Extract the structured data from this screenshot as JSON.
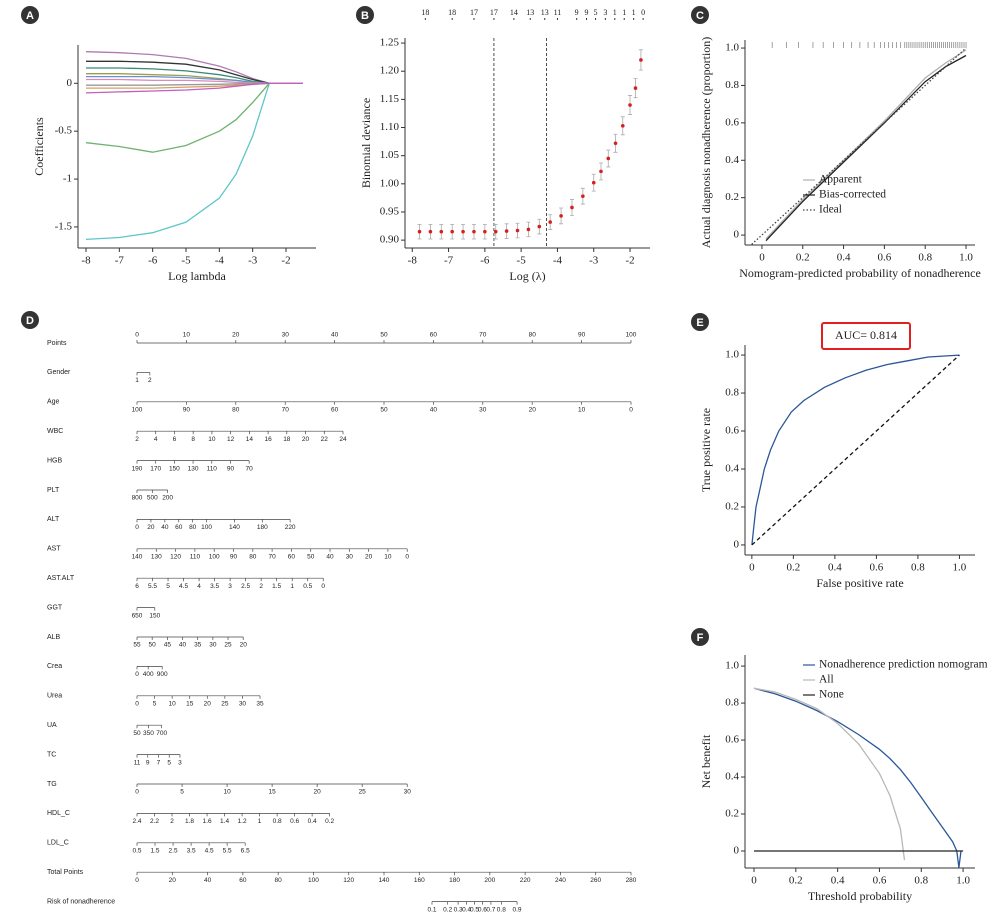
{
  "chart_data": [
    {
      "label": "A",
      "type": "line",
      "xlabel": "Log lambda",
      "ylabel": "Coefficients",
      "x": [
        -8,
        -7,
        -6,
        -5,
        -4,
        -3.5,
        -3,
        -2.5,
        -2,
        -1.5
      ],
      "xlim": [
        -8.24,
        -1.1
      ],
      "ylim": [
        -1.72,
        0.4
      ],
      "xticks": [
        -8,
        -7,
        -6,
        -5,
        -4,
        -3,
        -2
      ],
      "yticks": [
        0,
        -0.5,
        -1,
        -1.5
      ],
      "series": [
        {
          "color": "#5fc6c8",
          "values": [
            -1.63,
            -1.61,
            -1.56,
            -1.45,
            -1.2,
            -0.95,
            -0.55,
            0,
            0,
            0
          ]
        },
        {
          "color": "#6fb36f",
          "values": [
            -0.62,
            -0.66,
            -0.72,
            -0.65,
            -0.5,
            -0.38,
            -0.2,
            0,
            0,
            0
          ]
        },
        {
          "color": "#b07ab0",
          "values": [
            0.33,
            0.32,
            0.3,
            0.26,
            0.18,
            0.12,
            0.05,
            0,
            0,
            0
          ]
        },
        {
          "color": "#333333",
          "values": [
            0.23,
            0.23,
            0.22,
            0.2,
            0.14,
            0.09,
            0.04,
            0,
            0,
            0
          ]
        },
        {
          "color": "#3a8a7a",
          "values": [
            0.16,
            0.16,
            0.15,
            0.13,
            0.09,
            0.06,
            0.02,
            0,
            0,
            0
          ]
        },
        {
          "color": "#9aa050",
          "values": [
            0.1,
            0.1,
            0.09,
            0.08,
            0.05,
            0.03,
            0.01,
            0,
            0,
            0
          ]
        },
        {
          "color": "#6a8fd0",
          "values": [
            0.07,
            0.07,
            0.07,
            0.06,
            0.04,
            0.03,
            0.01,
            0,
            0,
            0
          ]
        },
        {
          "color": "#d88cb8",
          "values": [
            0.04,
            0.04,
            0.03,
            0.03,
            0.02,
            0.01,
            0.005,
            0,
            0,
            0
          ]
        },
        {
          "color": "#999999",
          "values": [
            -0.02,
            -0.02,
            -0.02,
            -0.015,
            -0.01,
            -0.005,
            0,
            0,
            0,
            0
          ]
        },
        {
          "color": "#d8a060",
          "values": [
            -0.05,
            -0.05,
            -0.05,
            -0.04,
            -0.03,
            -0.02,
            -0.01,
            0,
            0,
            0
          ]
        },
        {
          "color": "#c060c0",
          "values": [
            -0.1,
            -0.09,
            -0.08,
            -0.07,
            -0.05,
            -0.03,
            -0.01,
            0,
            0,
            0
          ]
        }
      ]
    },
    {
      "label": "B",
      "type": "errorbar",
      "xlabel": "Log (λ)",
      "ylabel": "Binomial deviance",
      "x": [
        -7.8,
        -7.5,
        -7.2,
        -6.9,
        -6.6,
        -6.3,
        -6.0,
        -5.7,
        -5.4,
        -5.1,
        -4.8,
        -4.5,
        -4.2,
        -3.9,
        -3.6,
        -3.3,
        -3.0,
        -2.8,
        -2.6,
        -2.4,
        -2.2,
        -2.0,
        -1.85,
        -1.7
      ],
      "values": [
        0.915,
        0.915,
        0.915,
        0.915,
        0.915,
        0.915,
        0.915,
        0.915,
        0.916,
        0.917,
        0.919,
        0.924,
        0.932,
        0.943,
        0.958,
        0.978,
        1.002,
        1.022,
        1.045,
        1.072,
        1.103,
        1.14,
        1.17,
        1.22
      ],
      "errors": [
        0.013,
        0.013,
        0.013,
        0.013,
        0.013,
        0.013,
        0.013,
        0.013,
        0.013,
        0.013,
        0.013,
        0.013,
        0.013,
        0.014,
        0.014,
        0.014,
        0.015,
        0.015,
        0.015,
        0.016,
        0.016,
        0.017,
        0.017,
        0.018
      ],
      "color": "#d62020",
      "error_color": "#aaaaaa",
      "vlines": [
        -5.75,
        -4.3
      ],
      "xlim": [
        -8.2,
        -1.45
      ],
      "ylim": [
        0.886,
        1.259
      ],
      "xticks": [
        -8,
        -7,
        -6,
        -5,
        -4,
        -3,
        -2
      ],
      "yticks": [
        {
          "value": 0.9,
          "label": "0.90"
        },
        0.95,
        {
          "value": 1.0,
          "label": "1.00"
        },
        1.05,
        {
          "value": 1.1,
          "label": "1.10"
        },
        1.15,
        {
          "value": 1.2,
          "label": "1.20"
        },
        1.25
      ],
      "top_ticks": [
        {
          "value": -7.64,
          "label": "18"
        },
        {
          "value": -6.9,
          "label": "18"
        },
        {
          "value": -6.3,
          "label": "17"
        },
        {
          "value": -5.75,
          "label": "17"
        },
        {
          "value": -5.2,
          "label": "14"
        },
        {
          "value": -4.75,
          "label": "13"
        },
        {
          "value": -4.35,
          "label": "13"
        },
        {
          "value": -4.0,
          "label": "11"
        },
        {
          "value": -3.47,
          "label": "9"
        },
        {
          "value": -3.2,
          "label": "9"
        },
        {
          "value": -2.95,
          "label": "5"
        },
        {
          "value": -2.68,
          "label": "3"
        },
        {
          "value": -2.42,
          "label": "1"
        },
        {
          "value": -2.16,
          "label": "1"
        },
        {
          "value": -1.9,
          "label": "1"
        },
        {
          "value": -1.64,
          "label": "0"
        }
      ]
    },
    {
      "label": "C",
      "type": "line",
      "xlabel": "Nomogram-predicted probability of nonadherence",
      "ylabel": "Actual diagnosis nonadherence (proportion)",
      "xlim": [
        -0.083,
        1.044
      ],
      "ylim": [
        -0.053,
        1.043
      ],
      "xticks": [
        0,
        0.2,
        0.4,
        0.6,
        0.8,
        {
          "value": 1.0,
          "label": "1.0"
        }
      ],
      "yticks": [
        0,
        0.2,
        0.4,
        0.6,
        0.8,
        {
          "value": 1.0,
          "label": "1.0"
        }
      ],
      "legend": "lower right",
      "rug": [
        0.05,
        0.12,
        0.18,
        0.25,
        0.3,
        0.35,
        0.4,
        0.44,
        0.48,
        0.52,
        0.55,
        0.58,
        0.6,
        0.62,
        0.64,
        0.66,
        0.68,
        0.7,
        0.71,
        0.72,
        0.73,
        0.74,
        0.75,
        0.76,
        0.77,
        0.78,
        0.79,
        0.8,
        0.81,
        0.82,
        0.83,
        0.84,
        0.85,
        0.86,
        0.87,
        0.88,
        0.89,
        0.9,
        0.91,
        0.92,
        0.93,
        0.94,
        0.95,
        0.96,
        0.97,
        0.98,
        0.99,
        1.0
      ],
      "series": [
        {
          "name": "Apparent",
          "color": "#b0b0b0",
          "x": [
            0.02,
            0.2,
            0.4,
            0.6,
            0.8,
            0.9,
            1.0
          ],
          "values": [
            -0.02,
            0.19,
            0.4,
            0.61,
            0.84,
            0.92,
            0.99
          ]
        },
        {
          "name": "Bias-corrected",
          "color": "#222222",
          "x": [
            0.02,
            0.2,
            0.4,
            0.6,
            0.8,
            0.9,
            1.0
          ],
          "values": [
            -0.03,
            0.18,
            0.39,
            0.6,
            0.82,
            0.9,
            0.96
          ]
        },
        {
          "name": "Ideal",
          "color": "#444444",
          "dash": "dotted",
          "x": [
            -0.05,
            1.0
          ],
          "values": [
            -0.05,
            1.0
          ]
        }
      ]
    },
    {
      "label": "D",
      "type": "nomogram",
      "rows": [
        {
          "name": "Points",
          "ticks": [
            0,
            10,
            20,
            30,
            40,
            50,
            60,
            70,
            80,
            90,
            100
          ],
          "points": [
            0,
            100
          ],
          "label_position": "above"
        },
        {
          "name": "Gender",
          "ticks": [
            1,
            2
          ],
          "points": [
            0,
            2.6
          ]
        },
        {
          "name": "Age",
          "ticks": [
            100,
            90,
            80,
            70,
            60,
            50,
            40,
            30,
            20,
            10,
            0
          ],
          "points": [
            0,
            100
          ]
        },
        {
          "name": "WBC",
          "ticks": [
            2,
            4,
            6,
            8,
            10,
            12,
            14,
            16,
            18,
            20,
            22,
            24
          ],
          "points": [
            0,
            41.7
          ]
        },
        {
          "name": "HGB",
          "ticks": [
            190,
            170,
            150,
            130,
            110,
            90,
            70
          ],
          "points": [
            0,
            22.7
          ]
        },
        {
          "name": "PLT",
          "ticks": [
            800,
            500,
            200
          ],
          "points": [
            0,
            6.2
          ]
        },
        {
          "name": "ALT",
          "ticks": [
            0,
            20,
            40,
            60,
            80,
            100,
            140,
            180,
            220
          ],
          "points": [
            0,
            31
          ]
        },
        {
          "name": "AST",
          "ticks": [
            140,
            130,
            120,
            110,
            100,
            90,
            80,
            70,
            60,
            50,
            40,
            30,
            20,
            10,
            0
          ],
          "points": [
            0,
            54.7
          ]
        },
        {
          "name": "AST.ALT",
          "ticks": [
            6,
            5.5,
            5,
            4.5,
            4,
            3.5,
            3,
            2.5,
            2,
            1.5,
            1,
            0.5,
            0
          ],
          "points": [
            0,
            37.7
          ]
        },
        {
          "name": "GGT",
          "ticks": [
            650,
            150
          ],
          "points": [
            0,
            3.6
          ]
        },
        {
          "name": "ALB",
          "ticks": [
            55,
            50,
            45,
            40,
            35,
            30,
            25,
            20
          ],
          "points": [
            0,
            21.5
          ]
        },
        {
          "name": "Crea",
          "ticks": [
            0,
            400,
            900
          ],
          "points": [
            0,
            5.1
          ]
        },
        {
          "name": "Urea",
          "ticks": [
            0,
            5,
            10,
            15,
            20,
            25,
            30,
            35
          ],
          "points": [
            0,
            24.9
          ]
        },
        {
          "name": "UA",
          "ticks": [
            50,
            350,
            700
          ],
          "points": [
            0,
            5
          ]
        },
        {
          "name": "TC",
          "ticks": [
            11,
            9,
            7,
            5,
            3
          ],
          "points": [
            0,
            8.7
          ]
        },
        {
          "name": "TG",
          "ticks": [
            0,
            5,
            10,
            15,
            20,
            25,
            30
          ],
          "points": [
            0,
            54.7
          ]
        },
        {
          "name": "HDL_C",
          "ticks": [
            2.4,
            2.2,
            2,
            1.8,
            1.6,
            1.4,
            1.2,
            1,
            0.8,
            0.6,
            0.4,
            0.2
          ],
          "points": [
            0,
            39
          ]
        },
        {
          "name": "LDL_C",
          "ticks": [
            0.5,
            1.5,
            2.5,
            3.5,
            4.5,
            5.5,
            6.5
          ],
          "points": [
            0,
            21.9
          ]
        },
        {
          "name": "Total Points",
          "ticks": [
            0,
            20,
            40,
            60,
            80,
            100,
            120,
            140,
            160,
            180,
            200,
            220,
            240,
            260,
            280
          ],
          "points": [
            0,
            280
          ],
          "axis": "total"
        },
        {
          "name": "Risk of nonadherence",
          "ticks": [
            0.1,
            0.2,
            0.3,
            0.4,
            0.5,
            0.6,
            0.7,
            0.8,
            0.9
          ],
          "points": [
            167.2,
            215.4
          ],
          "axis": "total",
          "scale": "logit"
        }
      ]
    },
    {
      "label": "E",
      "type": "line",
      "xlabel": "False positive rate",
      "ylabel": "True positive rate",
      "annotation": "AUC= 0.814",
      "annotation_color": "#e02020",
      "xlim": [
        -0.033,
        1.075
      ],
      "ylim": [
        -0.053,
        1.053
      ],
      "xticks": [
        0,
        0.2,
        0.4,
        0.6,
        0.8,
        {
          "value": 1.0,
          "label": "1.0"
        }
      ],
      "yticks": [
        0,
        0.2,
        0.4,
        0.6,
        0.8,
        {
          "value": 1.0,
          "label": "1.0"
        }
      ],
      "series": [
        {
          "color": "#2b5797",
          "x": [
            0,
            0.01,
            0.02,
            0.04,
            0.06,
            0.09,
            0.13,
            0.19,
            0.25,
            0.35,
            0.45,
            0.55,
            0.65,
            0.75,
            0.85,
            1.0
          ],
          "values": [
            0,
            0.1,
            0.2,
            0.3,
            0.4,
            0.5,
            0.6,
            0.7,
            0.76,
            0.83,
            0.88,
            0.92,
            0.95,
            0.97,
            0.99,
            1.0
          ]
        },
        {
          "color": "#111111",
          "dash": "dashed",
          "x": [
            0,
            1.0
          ],
          "values": [
            0,
            1.0
          ]
        }
      ]
    },
    {
      "label": "F",
      "type": "line",
      "xlabel": "Threshold probability",
      "ylabel": "Net benefit",
      "xlim": [
        -0.043,
        1.057
      ],
      "ylim": [
        -0.092,
        1.06
      ],
      "xticks": [
        0,
        0.2,
        0.4,
        0.6,
        0.8,
        {
          "value": 1.0,
          "label": "1.0"
        }
      ],
      "yticks": [
        0,
        0.2,
        0.4,
        0.6,
        0.8,
        {
          "value": 1.0,
          "label": "1.0"
        }
      ],
      "legend": "upper right",
      "series": [
        {
          "name": "Nonadherence prediction nomogram",
          "color": "#2b5797",
          "x": [
            0,
            0.1,
            0.2,
            0.3,
            0.4,
            0.5,
            0.6,
            0.65,
            0.7,
            0.75,
            0.8,
            0.85,
            0.9,
            0.95,
            0.97,
            0.98,
            0.99
          ],
          "values": [
            0.88,
            0.85,
            0.81,
            0.76,
            0.7,
            0.63,
            0.55,
            0.5,
            0.44,
            0.37,
            0.29,
            0.21,
            0.13,
            0.05,
            0.0,
            -0.09,
            0.0
          ]
        },
        {
          "name": "All",
          "color": "#b8b8b8",
          "x": [
            0,
            0.1,
            0.2,
            0.3,
            0.4,
            0.5,
            0.6,
            0.65,
            0.7,
            0.72
          ],
          "values": [
            0.88,
            0.86,
            0.82,
            0.77,
            0.69,
            0.58,
            0.42,
            0.3,
            0.12,
            -0.05
          ]
        },
        {
          "name": "None",
          "color": "#222222",
          "x": [
            0,
            1.0
          ],
          "values": [
            0,
            0
          ]
        }
      ]
    }
  ]
}
